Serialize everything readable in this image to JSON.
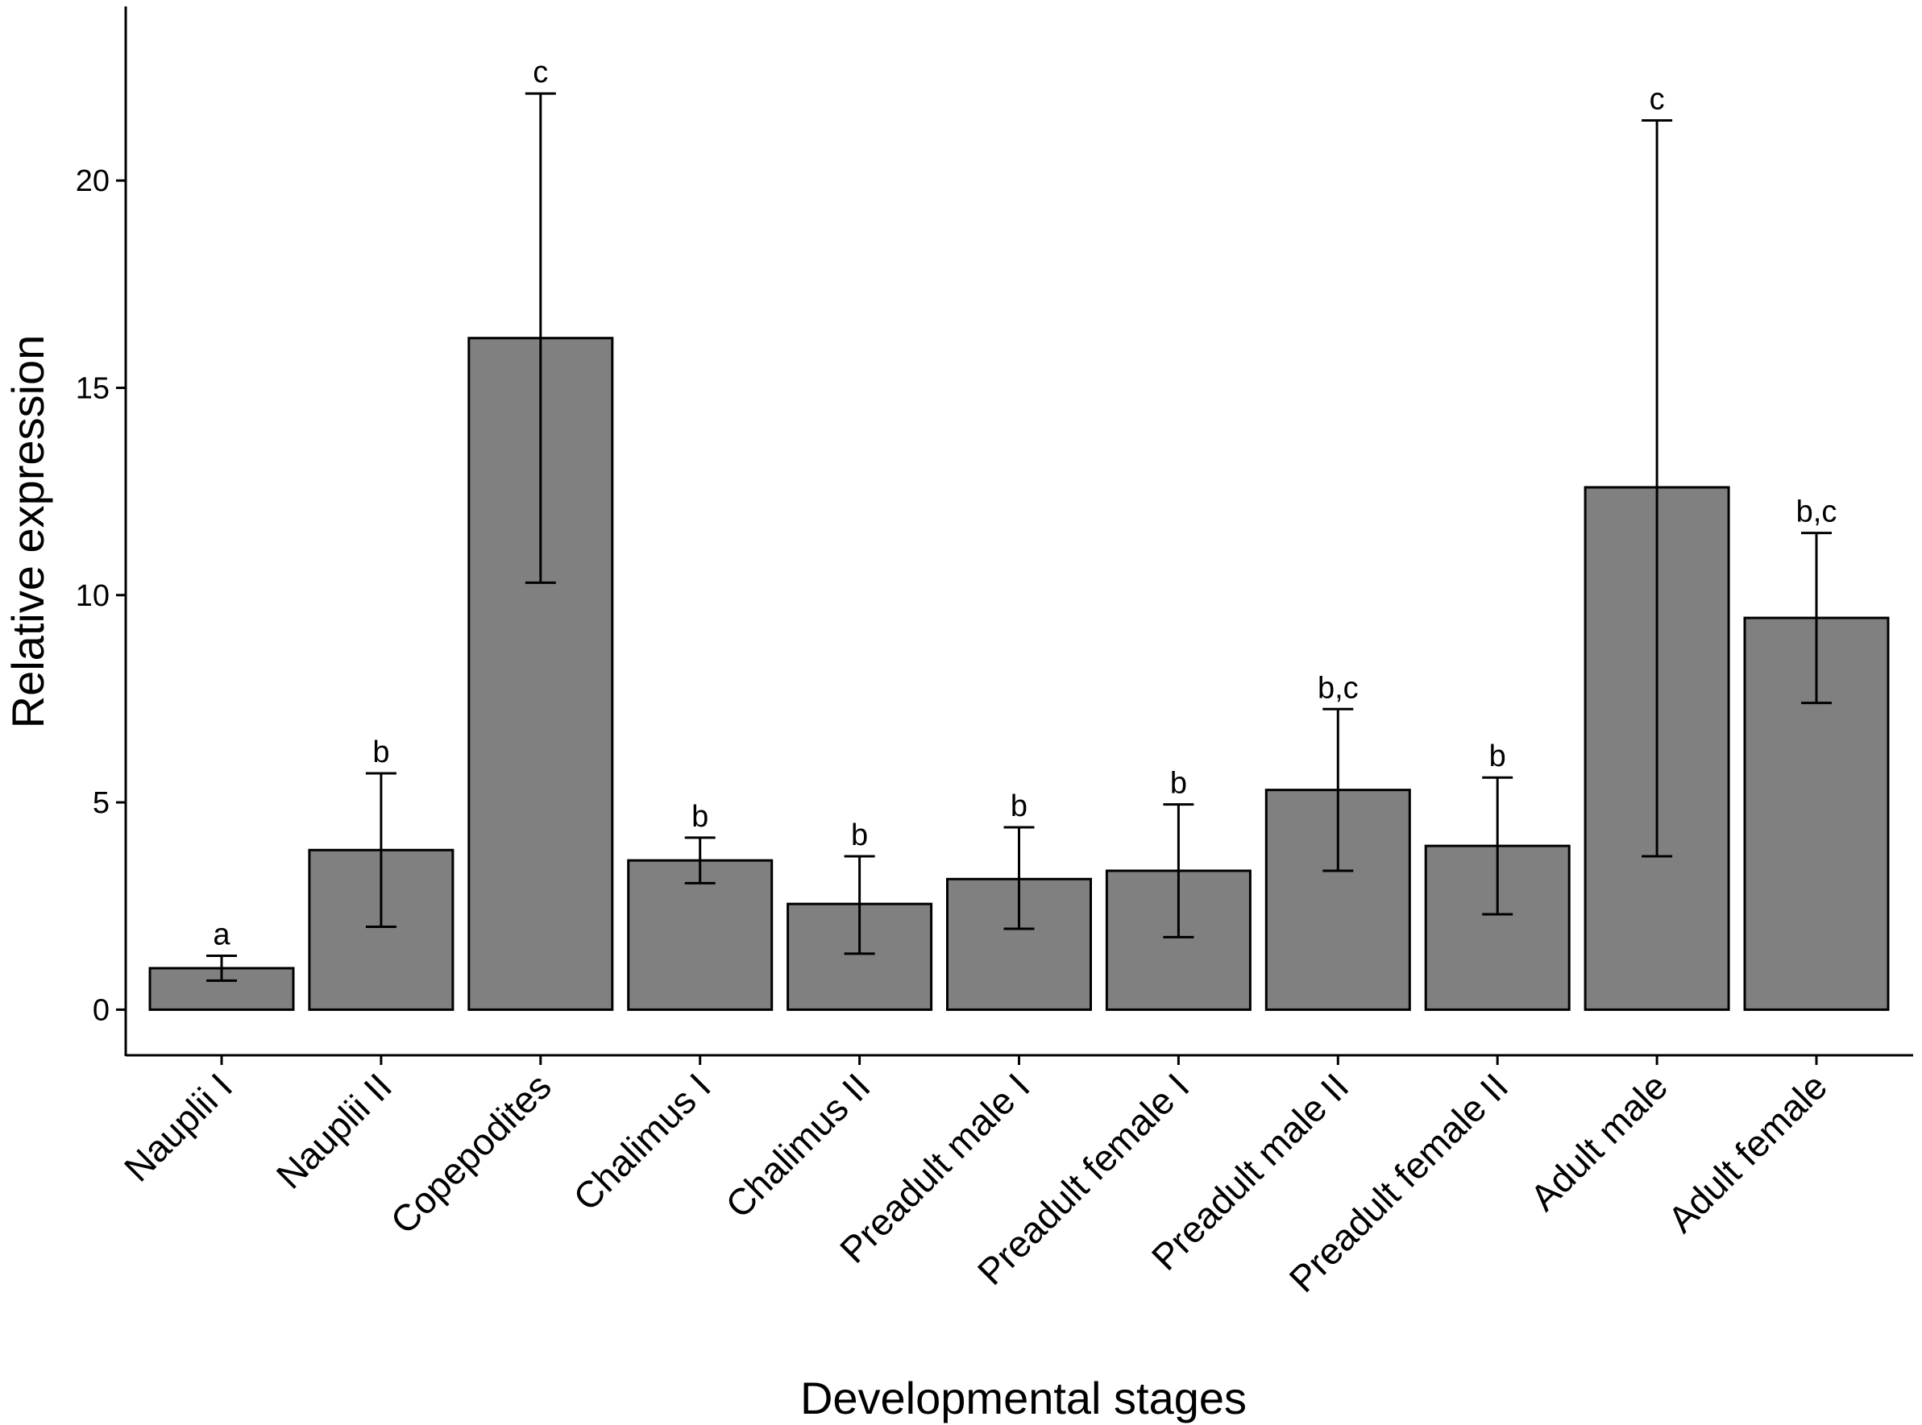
{
  "chart_data": {
    "type": "bar",
    "title": "",
    "xlabel": "Developmental stages",
    "ylabel": "Relative expression",
    "ylim": [
      -1.1,
      24.2
    ],
    "yticks": [
      0,
      5,
      10,
      15,
      20
    ],
    "grid": false,
    "legend": "none",
    "bar_color": "#808080",
    "edge_color": "#000000",
    "categories": [
      "Nauplii I",
      "Nauplii II",
      "Copepodites",
      "Chalimus I",
      "Chalimus II",
      "Preadult male I",
      "Preadult female I",
      "Preadult male II",
      "Preadult female II",
      "Adult male",
      "Adult female"
    ],
    "values": [
      1.0,
      3.85,
      16.2,
      3.6,
      2.55,
      3.15,
      3.35,
      5.3,
      3.95,
      12.6,
      9.45
    ],
    "error_low": [
      0.7,
      2.0,
      10.3,
      3.05,
      1.35,
      1.95,
      1.75,
      3.35,
      2.3,
      3.7,
      7.4
    ],
    "error_high": [
      1.3,
      5.7,
      22.1,
      4.15,
      3.7,
      4.4,
      4.95,
      7.25,
      5.6,
      21.45,
      11.5
    ],
    "significance": [
      "a",
      "b",
      "c",
      "b",
      "b",
      "b",
      "b",
      "b,c",
      "b",
      "c",
      "b,c"
    ]
  }
}
